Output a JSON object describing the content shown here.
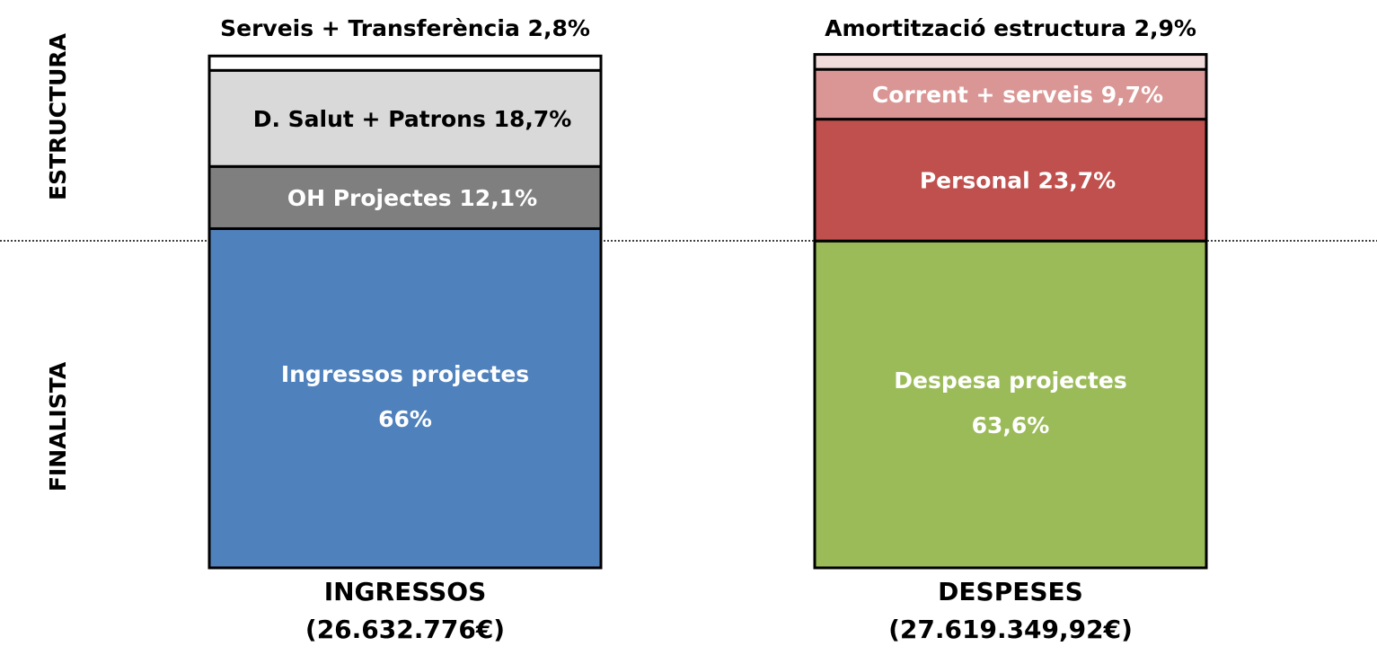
{
  "chart_data": {
    "type": "stacked_bar",
    "group_labels": [
      "ESTRUCTURA",
      "FINALISTA"
    ],
    "ylim": [
      0,
      100
    ],
    "bars": [
      {
        "name": "INGRESSOS",
        "subtitle": "(26.632.776€)",
        "segments": [
          {
            "name": "Ingressos projectes",
            "value": 66,
            "value_label": "66%",
            "color": "#4f81bd"
          },
          {
            "name": "OH Projectes",
            "value": 12.1,
            "value_label": "12,1%",
            "color": "#7f7f7f"
          },
          {
            "name": "D. Salut + Patrons",
            "value": 18.7,
            "value_label": "18,7%",
            "color": "#d9d9d9"
          },
          {
            "name": "Serveis + Transferència",
            "value": 2.8,
            "value_label": "2,8%",
            "color": "#ffffff"
          }
        ]
      },
      {
        "name": "DESPESES",
        "subtitle": "(27.619.349,92€)",
        "segments": [
          {
            "name": "Despesa projectes",
            "value": 63.6,
            "value_label": "63,6%",
            "color": "#9bbb59"
          },
          {
            "name": "Personal",
            "value": 23.7,
            "value_label": "23,7%",
            "color": "#c0504d"
          },
          {
            "name": "Corrent + serveis",
            "value": 9.7,
            "value_label": "9,7%",
            "color": "#d99694"
          },
          {
            "name": "Amortització estructura",
            "value": 2.9,
            "value_label": "2,9%",
            "color": "#f2dcdb"
          }
        ]
      }
    ]
  }
}
